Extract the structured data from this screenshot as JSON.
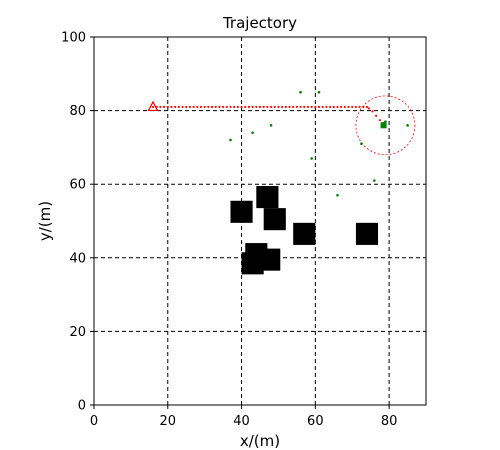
{
  "chart_data": {
    "type": "scatter",
    "title": "Trajectory",
    "xlabel": "x/(m)",
    "ylabel": "y/(m)",
    "xlim": [
      0,
      90
    ],
    "ylim": [
      0,
      100
    ],
    "xticks": [
      0,
      20,
      40,
      60,
      80
    ],
    "yticks": [
      0,
      20,
      40,
      60,
      80,
      100
    ],
    "grid": true,
    "grid_style": "dashed",
    "colors": {
      "trajectory": "#ff0000",
      "points": "#008000",
      "obstacles": "#000000",
      "target": "#008000",
      "circle": "#ff0000"
    },
    "start": {
      "x": 16,
      "y": 81
    },
    "trajectory": {
      "x_from": 16,
      "x_to": 74,
      "y_level": 81,
      "tail": [
        [
          74.5,
          80.6
        ],
        [
          75.5,
          79.8
        ],
        [
          76.5,
          78.6
        ],
        [
          77.5,
          77.4
        ],
        [
          78.3,
          76.6
        ]
      ]
    },
    "target": {
      "x": 78.5,
      "y": 76
    },
    "target_circle": {
      "x": 79,
      "y": 76,
      "r": 8
    },
    "green_points": [
      [
        56,
        85
      ],
      [
        61,
        85
      ],
      [
        48,
        76
      ],
      [
        43,
        74
      ],
      [
        37,
        72
      ],
      [
        59,
        67
      ],
      [
        72.5,
        71
      ],
      [
        79,
        77
      ],
      [
        85,
        76
      ],
      [
        76,
        61
      ],
      [
        66,
        57
      ]
    ],
    "obstacles": [
      {
        "x": 47,
        "y": 56.5,
        "w": 6,
        "h": 6
      },
      {
        "x": 40,
        "y": 52.5,
        "w": 6,
        "h": 6
      },
      {
        "x": 49,
        "y": 50.5,
        "w": 6,
        "h": 6
      },
      {
        "x": 57,
        "y": 46.5,
        "w": 6,
        "h": 6
      },
      {
        "x": 74,
        "y": 46.5,
        "w": 6,
        "h": 6
      },
      {
        "x": 44,
        "y": 41,
        "w": 6,
        "h": 6
      },
      {
        "x": 47.5,
        "y": 39.5,
        "w": 6,
        "h": 6
      },
      {
        "x": 43,
        "y": 38.5,
        "w": 6,
        "h": 6
      }
    ]
  }
}
